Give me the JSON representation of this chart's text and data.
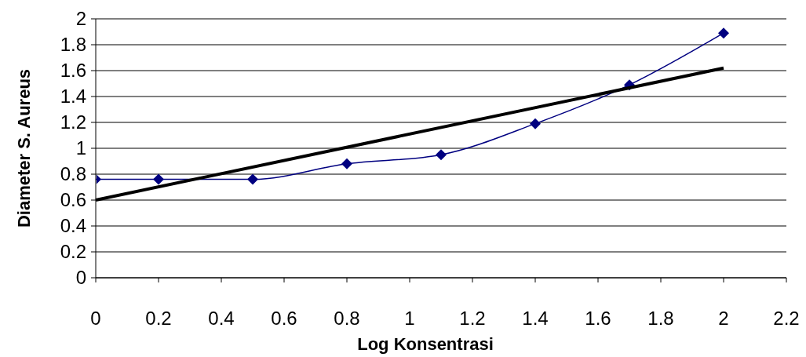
{
  "chart_data": {
    "type": "scatter",
    "xlabel": "Log Konsentrasi",
    "ylabel": "Diameter S. Aureus",
    "xlim": [
      0,
      2.2
    ],
    "xticks": [
      0,
      0.2,
      0.4,
      0.6,
      0.8,
      1,
      1.2,
      1.4,
      1.6,
      1.8,
      2,
      2.2
    ],
    "ylim": [
      0,
      2
    ],
    "yticks": [
      0,
      0.2,
      0.4,
      0.6,
      0.8,
      1,
      1.2,
      1.4,
      1.6,
      1.8,
      2
    ],
    "grid": "y",
    "series": [
      {
        "type": "line",
        "color": "#000080",
        "marker": "diamond",
        "x": [
          0,
          0.2,
          0.5,
          0.8,
          1.1,
          1.4,
          1.7,
          2
        ],
        "values": [
          0.76,
          0.76,
          0.76,
          0.88,
          0.95,
          1.19,
          1.49,
          1.89
        ]
      },
      {
        "type": "line",
        "color": "#000000",
        "marker": "none",
        "x": [
          0,
          2
        ],
        "values": [
          0.6,
          1.62
        ]
      }
    ]
  }
}
